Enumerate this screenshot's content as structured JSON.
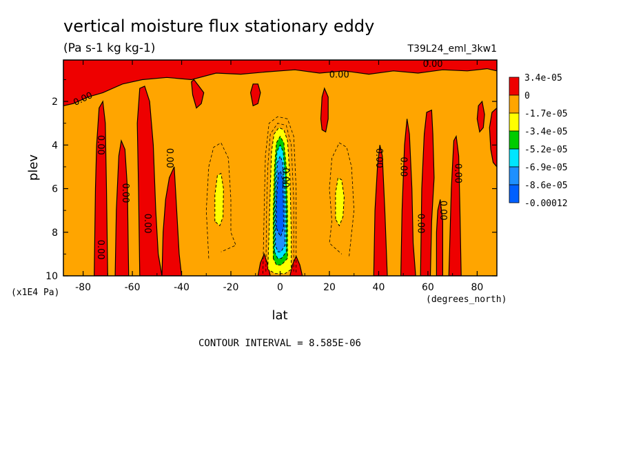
{
  "chart_data": {
    "type": "heatmap",
    "title": "vertical moisture flux stationary eddy",
    "subtitle": "(Pa s-1 kg kg-1)",
    "run_label": "T39L24_eml_3kw1",
    "xlabel": "lat",
    "x_unit": "(degrees_north)",
    "ylabel": "plev",
    "y_unit": "(x1E4 Pa)",
    "xlim": [
      -88,
      88
    ],
    "ylim": [
      0.1,
      10
    ],
    "y_inverted": true,
    "x_ticks": [
      -80,
      -60,
      -40,
      -20,
      0,
      20,
      40,
      60,
      80
    ],
    "y_ticks": [
      2,
      4,
      6,
      8,
      10
    ],
    "x_tick_labels": [
      "-80",
      "-60",
      "-40",
      "-20",
      "0",
      "20",
      "40",
      "60",
      "80"
    ],
    "y_tick_labels": [
      "2",
      "4",
      "6",
      "8",
      "10"
    ],
    "contour_interval_text": "CONTOUR INTERVAL = 8.585E-06",
    "contour_label": "0.00",
    "legend": {
      "placement": "right",
      "labels": [
        "3.4e-05",
        "0",
        "-1.7e-05",
        "-3.4e-05",
        "-5.2e-05",
        "-6.9e-05",
        "-8.6e-05",
        "-0.00012"
      ],
      "colors": [
        "#ee0000",
        "#ffa500",
        "#ffff00",
        "#00cc00",
        "#00e5ff",
        "#1e90ff",
        "#0060ff"
      ]
    },
    "colors": {
      "positive": "#ee0000",
      "background": "#ffa500",
      "yellow": "#ffff00",
      "green": "#00cc00",
      "cyan": "#00e5ff",
      "blue": "#1e90ff",
      "deep_blue": "#0060ff"
    },
    "positive_regions": [
      {
        "name": "top-band",
        "poly": [
          [
            -88,
            0.1
          ],
          [
            88,
            0.1
          ],
          [
            88,
            0.6
          ],
          [
            84,
            0.5
          ],
          [
            76,
            0.6
          ],
          [
            66,
            0.55
          ],
          [
            56,
            0.7
          ],
          [
            46,
            0.6
          ],
          [
            36,
            0.75
          ],
          [
            26,
            0.6
          ],
          [
            16,
            0.7
          ],
          [
            6,
            0.55
          ],
          [
            -6,
            0.65
          ],
          [
            -16,
            0.75
          ],
          [
            -26,
            0.7
          ],
          [
            -36,
            1.0
          ],
          [
            -46,
            0.9
          ],
          [
            -56,
            1.0
          ],
          [
            -64,
            1.2
          ],
          [
            -72,
            1.6
          ],
          [
            -78,
            1.8
          ],
          [
            -84,
            2.1
          ],
          [
            -88,
            2.2
          ]
        ]
      },
      {
        "name": "sh-column-72",
        "poly": [
          [
            -75.5,
            10
          ],
          [
            -75,
            6
          ],
          [
            -74.5,
            4
          ],
          [
            -73.5,
            2.3
          ],
          [
            -72,
            2.0
          ],
          [
            -71,
            3
          ],
          [
            -70.5,
            6
          ],
          [
            -70,
            10
          ]
        ]
      },
      {
        "name": "sh-column-62",
        "poly": [
          [
            -67,
            10
          ],
          [
            -66.5,
            7
          ],
          [
            -65.5,
            4.5
          ],
          [
            -64.5,
            3.8
          ],
          [
            -63,
            4.2
          ],
          [
            -62,
            6
          ],
          [
            -61.5,
            10
          ]
        ]
      },
      {
        "name": "sh-column-50",
        "poly": [
          [
            -57,
            10
          ],
          [
            -57.5,
            6
          ],
          [
            -58,
            3
          ],
          [
            -57,
            1.4
          ],
          [
            -55,
            1.3
          ],
          [
            -53,
            2.0
          ],
          [
            -51.5,
            4
          ],
          [
            -50.5,
            7
          ],
          [
            -49.5,
            9
          ],
          [
            -48,
            10
          ]
        ]
      },
      {
        "name": "sh-column-42",
        "poly": [
          [
            -48,
            10
          ],
          [
            -47.5,
            8
          ],
          [
            -46.5,
            6.5
          ],
          [
            -45,
            5.5
          ],
          [
            -43,
            5
          ],
          [
            -42,
            7
          ],
          [
            -41,
            9
          ],
          [
            -40,
            10
          ]
        ]
      },
      {
        "name": "sh-slab-34",
        "poly": [
          [
            -36,
            1.1
          ],
          [
            -35,
            1.0
          ],
          [
            -33,
            1.3
          ],
          [
            -31,
            1.6
          ],
          [
            -32,
            2.1
          ],
          [
            -34,
            2.3
          ],
          [
            -35.5,
            1.7
          ]
        ]
      },
      {
        "name": "sh-blob-10",
        "poly": [
          [
            -12,
            1.6
          ],
          [
            -11,
            1.2
          ],
          [
            -9,
            1.2
          ],
          [
            -8,
            1.6
          ],
          [
            -9,
            2.1
          ],
          [
            -11,
            2.2
          ]
        ]
      },
      {
        "name": "eq-spike-left",
        "poly": [
          [
            -9,
            10
          ],
          [
            -8,
            9.4
          ],
          [
            -6.5,
            9.0
          ],
          [
            -5,
            9.5
          ],
          [
            -4,
            10
          ]
        ]
      },
      {
        "name": "eq-spike-right",
        "poly": [
          [
            4,
            10
          ],
          [
            5,
            9.5
          ],
          [
            6.5,
            9.1
          ],
          [
            8,
            9.5
          ],
          [
            9,
            10
          ]
        ]
      },
      {
        "name": "nh-blob-17",
        "poly": [
          [
            16.5,
            2.8
          ],
          [
            17,
            1.8
          ],
          [
            18,
            1.4
          ],
          [
            19.5,
            1.8
          ],
          [
            19.5,
            2.8
          ],
          [
            18.5,
            3.4
          ],
          [
            17,
            3.3
          ]
        ]
      },
      {
        "name": "nh-column-40",
        "poly": [
          [
            38,
            10
          ],
          [
            38.5,
            7
          ],
          [
            39.5,
            5
          ],
          [
            40.5,
            4.0
          ],
          [
            41.5,
            4.5
          ],
          [
            42.5,
            7
          ],
          [
            43.5,
            10
          ]
        ]
      },
      {
        "name": "nh-column-48",
        "poly": [
          [
            49,
            10
          ],
          [
            49.5,
            7
          ],
          [
            50.5,
            4
          ],
          [
            51.5,
            2.8
          ],
          [
            52.5,
            3.5
          ],
          [
            53.5,
            6
          ],
          [
            54,
            8.5
          ],
          [
            55,
            10
          ]
        ]
      },
      {
        "name": "nh-column-58",
        "poly": [
          [
            57,
            10
          ],
          [
            57.5,
            6
          ],
          [
            58.5,
            3.5
          ],
          [
            59.5,
            2.5
          ],
          [
            61.5,
            2.4
          ],
          [
            62,
            3.5
          ],
          [
            62.5,
            5.5
          ],
          [
            61.5,
            7.5
          ],
          [
            61,
            10
          ]
        ]
      },
      {
        "name": "nh-column-64",
        "poly": [
          [
            63.5,
            10
          ],
          [
            63.5,
            8
          ],
          [
            64,
            7
          ],
          [
            65,
            6.5
          ],
          [
            66,
            7.5
          ],
          [
            66,
            10
          ]
        ]
      },
      {
        "name": "nh-column-71",
        "poly": [
          [
            68.5,
            10
          ],
          [
            69,
            8
          ],
          [
            69.5,
            6
          ],
          [
            70.5,
            3.8
          ],
          [
            71.5,
            3.6
          ],
          [
            72.5,
            4.5
          ],
          [
            73,
            7
          ],
          [
            73.5,
            10
          ]
        ]
      },
      {
        "name": "nh-blob-82",
        "poly": [
          [
            80,
            2.8
          ],
          [
            80.5,
            2.2
          ],
          [
            82,
            2.0
          ],
          [
            83,
            2.6
          ],
          [
            82.5,
            3.2
          ],
          [
            81,
            3.4
          ]
        ]
      },
      {
        "name": "nh-blob-86",
        "poly": [
          [
            85,
            3.2
          ],
          [
            86,
            2.5
          ],
          [
            88,
            2.3
          ],
          [
            88,
            5
          ],
          [
            86.5,
            4.8
          ],
          [
            85.5,
            4.2
          ]
        ]
      }
    ],
    "negative_levels": [
      {
        "color": "#ffff00",
        "poly": [
          [
            -5,
            9.7
          ],
          [
            -4.5,
            8
          ],
          [
            -4,
            6
          ],
          [
            -3.5,
            4.3
          ],
          [
            -2.5,
            3.5
          ],
          [
            -0.5,
            3.2
          ],
          [
            1.5,
            3.3
          ],
          [
            3,
            3.8
          ],
          [
            4,
            5.5
          ],
          [
            4.5,
            8
          ],
          [
            4.5,
            9.7
          ],
          [
            2,
            9.9
          ],
          [
            -2,
            9.9
          ]
        ]
      },
      {
        "color": "#00cc00",
        "poly": [
          [
            -2.8,
            9.2
          ],
          [
            -2.8,
            7
          ],
          [
            -2.3,
            5
          ],
          [
            -1.5,
            3.9
          ],
          [
            0,
            3.6
          ],
          [
            1.5,
            3.9
          ],
          [
            2.5,
            5
          ],
          [
            3,
            7
          ],
          [
            3,
            9.2
          ],
          [
            0.5,
            9.5
          ],
          [
            -1.5,
            9.5
          ]
        ]
      },
      {
        "color": "#00e5ff",
        "poly": [
          [
            -2.3,
            8.9
          ],
          [
            -2.3,
            7
          ],
          [
            -1.9,
            5.3
          ],
          [
            -1.3,
            4.3
          ],
          [
            0,
            4.0
          ],
          [
            1.2,
            4.3
          ],
          [
            2,
            5.3
          ],
          [
            2.5,
            7
          ],
          [
            2.5,
            8.9
          ],
          [
            0.5,
            9.2
          ],
          [
            -1,
            9.2
          ]
        ]
      },
      {
        "color": "#1e90ff",
        "poly": [
          [
            -1.9,
            8.6
          ],
          [
            -1.9,
            7
          ],
          [
            -1.6,
            5.8
          ],
          [
            -1.1,
            4.8
          ],
          [
            0,
            4.5
          ],
          [
            1,
            4.8
          ],
          [
            1.6,
            5.8
          ],
          [
            2,
            7
          ],
          [
            2,
            8.6
          ],
          [
            0.3,
            8.9
          ],
          [
            -0.9,
            8.9
          ]
        ]
      },
      {
        "color": "#0060ff",
        "poly": [
          [
            -1.5,
            7.8
          ],
          [
            -1.5,
            6.8
          ],
          [
            -1.2,
            6.0
          ],
          [
            -0.7,
            5.3
          ],
          [
            0.2,
            5.2
          ],
          [
            1,
            5.6
          ],
          [
            1.3,
            6.5
          ],
          [
            1.4,
            7.8
          ],
          [
            0.2,
            8.2
          ],
          [
            -0.8,
            8.0
          ]
        ]
      },
      {
        "color": "#ffff00",
        "poly": [
          [
            -26.5,
            7.5
          ],
          [
            -26.5,
            6.3
          ],
          [
            -25.5,
            5.4
          ],
          [
            -24,
            5.3
          ],
          [
            -23,
            6.0
          ],
          [
            -23.2,
            7.3
          ],
          [
            -24.5,
            7.7
          ]
        ]
      },
      {
        "color": "#ffff00",
        "poly": [
          [
            22.5,
            7.4
          ],
          [
            22.5,
            6.2
          ],
          [
            23.5,
            5.5
          ],
          [
            25,
            5.6
          ],
          [
            26,
            6.4
          ],
          [
            25.5,
            7.3
          ],
          [
            24,
            7.7
          ]
        ]
      }
    ],
    "dashed_contours": [
      [
        [
          -29,
          9.2
        ],
        [
          -30,
          7
        ],
        [
          -29,
          5
        ],
        [
          -27,
          4.1
        ],
        [
          -24,
          3.9
        ],
        [
          -21,
          4.6
        ],
        [
          -20,
          6.5
        ],
        [
          -20,
          8
        ],
        [
          -18,
          8.6
        ],
        [
          -24,
          8.9
        ]
      ],
      [
        [
          28,
          9.1
        ],
        [
          30,
          7
        ],
        [
          29,
          5
        ],
        [
          27,
          4.1
        ],
        [
          24,
          3.9
        ],
        [
          21,
          4.6
        ],
        [
          20,
          6
        ],
        [
          21,
          7.5
        ],
        [
          20,
          8.5
        ],
        [
          25,
          9.0
        ]
      ],
      [
        [
          -7,
          9.9
        ],
        [
          -6.5,
          7
        ],
        [
          -6,
          4.5
        ],
        [
          -4.5,
          3.0
        ],
        [
          -1,
          2.7
        ],
        [
          3,
          2.8
        ],
        [
          5.5,
          3.6
        ],
        [
          6.5,
          6
        ],
        [
          6.5,
          9.9
        ]
      ],
      [
        [
          -5.8,
          9.8
        ],
        [
          -5.5,
          7
        ],
        [
          -5,
          5
        ],
        [
          -4,
          3.5
        ],
        [
          -1,
          3.0
        ],
        [
          2.5,
          3.1
        ],
        [
          4.5,
          4
        ],
        [
          5.5,
          6.5
        ],
        [
          5.5,
          9.8
        ]
      ]
    ],
    "contour_label_positions": [
      {
        "lat": -80,
        "plev": 1.9,
        "rot": -25
      },
      {
        "lat": -73,
        "plev": 4.0,
        "rot": 90
      },
      {
        "lat": -63,
        "plev": 6.2,
        "rot": 90
      },
      {
        "lat": -73,
        "plev": 8.8,
        "rot": 90
      },
      {
        "lat": -54,
        "plev": 7.6,
        "rot": 90
      },
      {
        "lat": -45,
        "plev": 4.6,
        "rot": 90
      },
      {
        "lat": 24,
        "plev": 0.8,
        "rot": 0
      },
      {
        "lat": 62,
        "plev": 0.3,
        "rot": 0
      },
      {
        "lat": 40,
        "plev": 4.6,
        "rot": 90
      },
      {
        "lat": 50,
        "plev": 5.0,
        "rot": 90
      },
      {
        "lat": 57,
        "plev": 7.6,
        "rot": 90
      },
      {
        "lat": 66,
        "plev": 7.0,
        "rot": 90
      },
      {
        "lat": 72,
        "plev": 5.3,
        "rot": 90
      },
      {
        "lat": 2,
        "plev": 5.5,
        "rot": 90
      }
    ]
  }
}
